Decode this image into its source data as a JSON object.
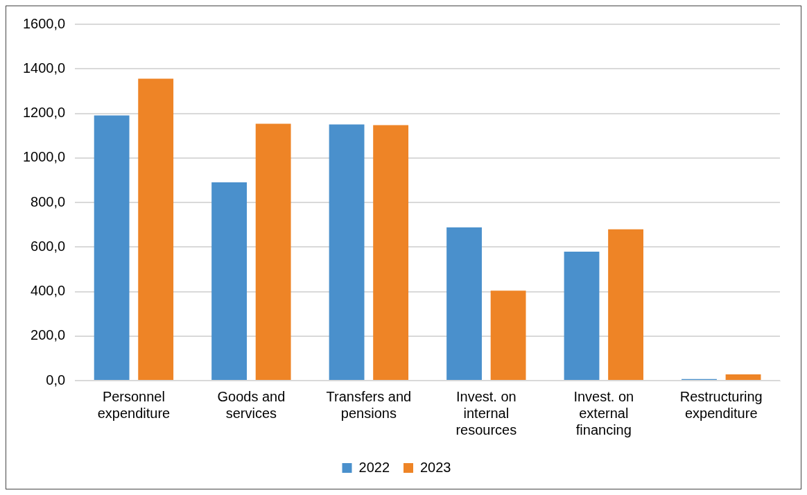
{
  "chart_data": {
    "type": "bar",
    "categories": [
      "Personnel expenditure",
      "Goods and services",
      "Transfers and pensions",
      "Invest. on internal resources",
      "Invest. on external financing",
      "Restructuring expenditure"
    ],
    "series": [
      {
        "name": "2022",
        "color": "#4a90cc",
        "values": [
          1191,
          890,
          1150,
          688,
          579,
          7
        ]
      },
      {
        "name": "2023",
        "color": "#ee8426",
        "values": [
          1356,
          1153,
          1147,
          404,
          679,
          28
        ]
      }
    ],
    "ylim": [
      0,
      1600
    ],
    "yticks": [
      {
        "value": 0,
        "label": "0,0"
      },
      {
        "value": 200,
        "label": "200,0"
      },
      {
        "value": 400,
        "label": "400,0"
      },
      {
        "value": 600,
        "label": "600,0"
      },
      {
        "value": 800,
        "label": "800,0"
      },
      {
        "value": 1000,
        "label": "1000,0"
      },
      {
        "value": 1200,
        "label": "1200,0"
      },
      {
        "value": 1400,
        "label": "1400,0"
      },
      {
        "value": 1600,
        "label": "1600,0"
      }
    ],
    "grid": "y",
    "legend": "bottom"
  }
}
